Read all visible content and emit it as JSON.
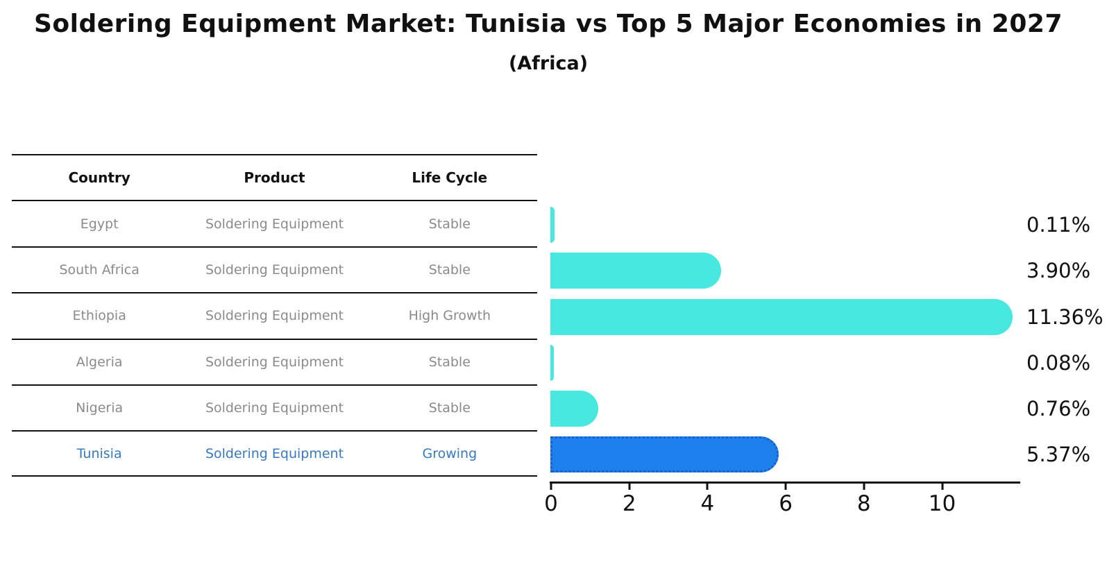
{
  "header": {
    "title": "Soldering Equipment Market: Tunisia vs Top 5 Major Economies in 2027",
    "subtitle": "(Africa)"
  },
  "table": {
    "headers": [
      "Country",
      "Product",
      "Life Cycle"
    ],
    "rows": [
      {
        "country": "Egypt",
        "product": "Soldering Equipment",
        "life_cycle": "Stable"
      },
      {
        "country": "South Africa",
        "product": "Soldering Equipment",
        "life_cycle": "Stable"
      },
      {
        "country": "Ethiopia",
        "product": "Soldering Equipment",
        "life_cycle": "High Growth"
      },
      {
        "country": "Algeria",
        "product": "Soldering Equipment",
        "life_cycle": "Stable"
      },
      {
        "country": "Nigeria",
        "product": "Soldering Equipment",
        "life_cycle": "Stable"
      },
      {
        "country": "Tunisia",
        "product": "Soldering Equipment",
        "life_cycle": "Growing"
      }
    ],
    "highlight_row_index": 5
  },
  "chart_data": {
    "type": "bar",
    "orientation": "horizontal",
    "title": "Soldering Equipment Market: Tunisia vs Top 5 Major Economies in 2027 (Africa)",
    "categories": [
      "Egypt",
      "South Africa",
      "Ethiopia",
      "Algeria",
      "Nigeria",
      "Tunisia"
    ],
    "values": [
      0.11,
      3.9,
      11.36,
      0.08,
      0.76,
      5.37
    ],
    "value_labels": [
      "0.11%",
      "3.90%",
      "11.36%",
      "0.08%",
      "0.76%",
      "5.37%"
    ],
    "unit": "percent",
    "x_ticks": [
      0,
      2,
      4,
      6,
      8,
      10
    ],
    "x_tick_labels": [
      "0",
      "2",
      "4",
      "6",
      "8",
      "10"
    ],
    "xlim": [
      0,
      12
    ],
    "grid": false,
    "legend": "none",
    "highlight_index": 5
  },
  "colors": {
    "bar": "#46e8e0",
    "highlight_bar": "#1e80ec",
    "highlight_border": "#1a5fc8",
    "highlight_text": "#3579c4",
    "row_text": "#8a8a8a",
    "axis": "#111111"
  }
}
